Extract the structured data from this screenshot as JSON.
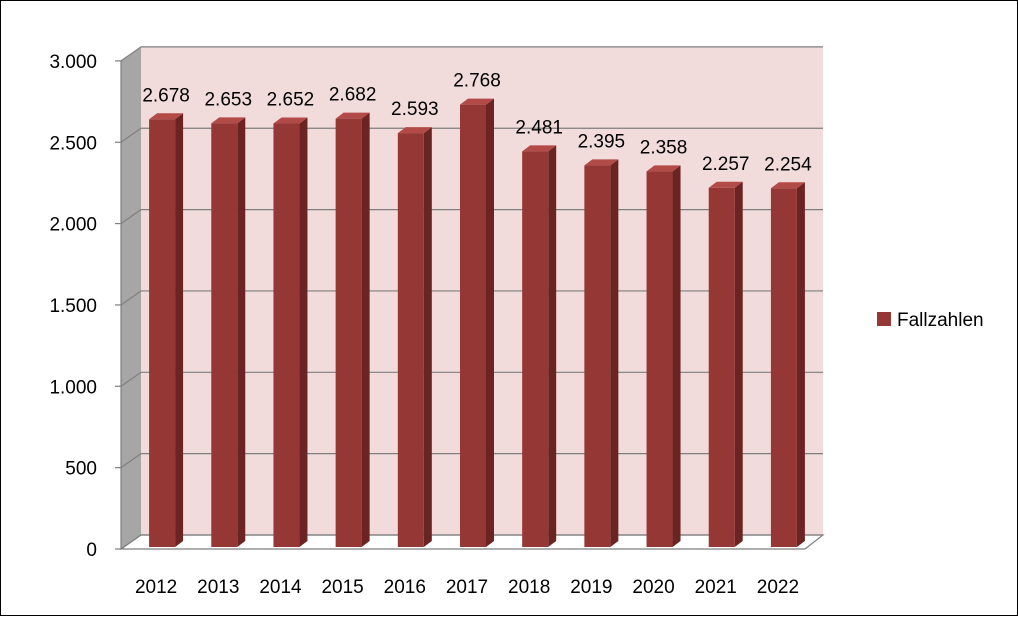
{
  "chart_data": {
    "type": "bar",
    "categories": [
      "2012",
      "2013",
      "2014",
      "2015",
      "2016",
      "2017",
      "2018",
      "2019",
      "2020",
      "2021",
      "2022"
    ],
    "series": [
      {
        "name": "Fallzahlen",
        "values": [
          2678,
          2653,
          2652,
          2682,
          2593,
          2768,
          2481,
          2395,
          2358,
          2257,
          2254
        ],
        "labels": [
          "2.678",
          "2.653",
          "2.652",
          "2.682",
          "2.593",
          "2.768",
          "2.481",
          "2.395",
          "2.358",
          "2.257",
          "2.254"
        ]
      }
    ],
    "yticks": [
      0,
      500,
      1000,
      1500,
      2000,
      2500,
      3000
    ],
    "ytick_labels": [
      "0",
      "500",
      "1.000",
      "1.500",
      "2.000",
      "2.500",
      "3.000"
    ],
    "ylim": [
      0,
      3000
    ],
    "title": "",
    "xlabel": "",
    "ylabel": "",
    "grid": true,
    "three_d": true,
    "legend_position": "right",
    "colors": {
      "bar_front": "#953735",
      "bar_side": "#6b2422",
      "bar_top": "#b24a47",
      "back_wall": "#f2dcdb",
      "side_wall": "#a6a6a6",
      "floor": "#ffffff",
      "gridline": "#7f7f7f"
    }
  }
}
